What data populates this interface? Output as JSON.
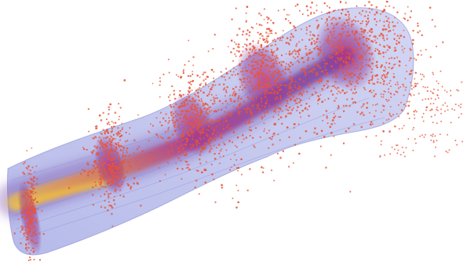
{
  "scene": {
    "subject": "particle-beam-visualization",
    "colors": {
      "background": "#ffffff",
      "volume_fill": "#b8bde8",
      "volume_edge": "#8a90d4",
      "core_purple": "#6a3aa0",
      "core_magenta": "#b0307a",
      "core_orange": "#e88a3a",
      "core_yellow": "#f0c040",
      "particles": "#e8553a"
    },
    "particle_clusters": 5,
    "particles_per_cluster": 700
  }
}
